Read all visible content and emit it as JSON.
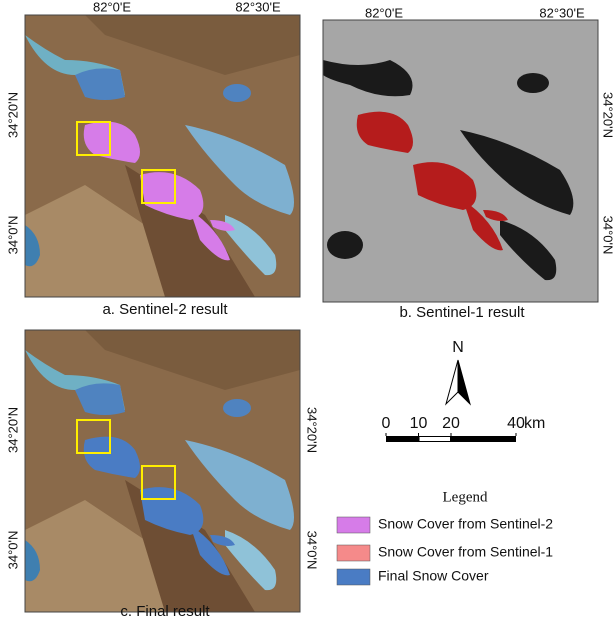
{
  "panels": [
    {
      "caption": "a.  Sentinel-2 result",
      "top_labels": [
        "82°0'E",
        "82°30'E"
      ],
      "side_labels": [
        "34°20'N",
        "34°0'N"
      ]
    },
    {
      "caption": "b. Sentinel-1 result",
      "top_labels": [
        "82°0'E",
        "82°30'E"
      ],
      "side_labels": [
        "34°20'N",
        "34°0'N"
      ]
    },
    {
      "caption": "c. Final result",
      "left_labels": [
        "34°20'N",
        "34°0'N"
      ],
      "right_labels": [
        "34°20'N",
        "34°0'N"
      ]
    }
  ],
  "north_arrow": {
    "label": "N"
  },
  "scale_bar": {
    "ticks": [
      0,
      10,
      20,
      40
    ],
    "unit": "km"
  },
  "legend": {
    "title": "Legend",
    "items": [
      {
        "label": "Snow Cover from Sentinel-2",
        "color": "#d67ce8"
      },
      {
        "label": "Snow Cover from Sentinel-1",
        "color": "#f58a8a"
      },
      {
        "label": "Final Snow Cover",
        "color": "#4a7cc4"
      }
    ]
  }
}
